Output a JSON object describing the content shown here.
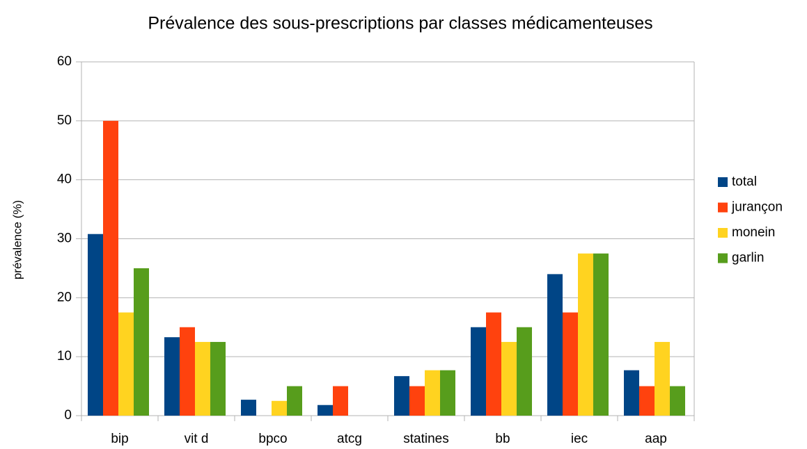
{
  "chart_data": {
    "type": "bar",
    "title": "Prévalence des sous-prescriptions par classes médicamenteuses",
    "y_label": "prévalence (%)",
    "categories": [
      "bip",
      "vit d",
      "bpco",
      "atcg",
      "statines",
      "bb",
      "iec",
      "aap"
    ],
    "series": [
      {
        "name": "total",
        "color": "#004586",
        "values": [
          30.8,
          13.3,
          2.7,
          1.8,
          6.7,
          15,
          24,
          7.7
        ]
      },
      {
        "name": "jurançon",
        "color": "#ff420e",
        "values": [
          50,
          15,
          0,
          5,
          5,
          17.5,
          17.5,
          5
        ]
      },
      {
        "name": "monein",
        "color": "#ffd320",
        "values": [
          17.5,
          12.5,
          2.5,
          0,
          7.7,
          12.5,
          27.5,
          12.5
        ]
      },
      {
        "name": "garlin",
        "color": "#579d1c",
        "values": [
          25,
          12.5,
          5,
          0,
          7.7,
          15,
          27.5,
          5
        ]
      }
    ],
    "ylim": [
      0,
      60
    ],
    "yticks": [
      0,
      10,
      20,
      30,
      40,
      50,
      60
    ],
    "grid": true,
    "legend": "right"
  }
}
